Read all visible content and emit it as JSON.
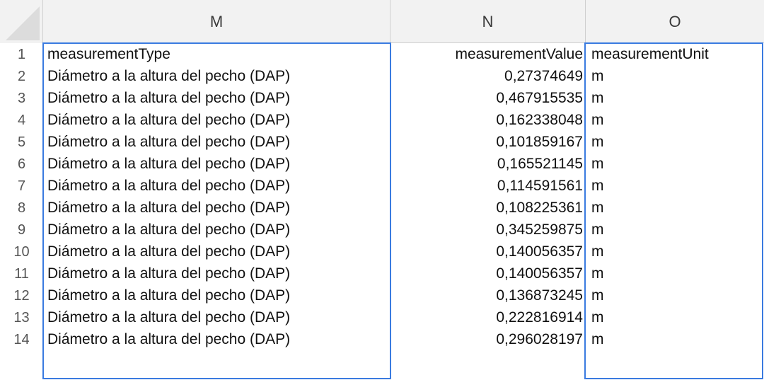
{
  "columns": [
    "M",
    "N",
    "O"
  ],
  "header_row": {
    "number": "1",
    "m": "measurementType",
    "n": "measurementValue",
    "o": "measurementUnit"
  },
  "rows": [
    {
      "number": "2",
      "type": "Diámetro a la altura del pecho (DAP)",
      "value": "0,27374649",
      "unit": "m"
    },
    {
      "number": "3",
      "type": "Diámetro a la altura del pecho (DAP)",
      "value": "0,467915535",
      "unit": "m"
    },
    {
      "number": "4",
      "type": "Diámetro a la altura del pecho (DAP)",
      "value": "0,162338048",
      "unit": "m"
    },
    {
      "number": "5",
      "type": "Diámetro a la altura del pecho (DAP)",
      "value": "0,101859167",
      "unit": "m"
    },
    {
      "number": "6",
      "type": "Diámetro a la altura del pecho (DAP)",
      "value": "0,165521145",
      "unit": "m"
    },
    {
      "number": "7",
      "type": "Diámetro a la altura del pecho (DAP)",
      "value": "0,114591561",
      "unit": "m"
    },
    {
      "number": "8",
      "type": "Diámetro a la altura del pecho (DAP)",
      "value": "0,108225361",
      "unit": "m"
    },
    {
      "number": "9",
      "type": "Diámetro a la altura del pecho (DAP)",
      "value": "0,345259875",
      "unit": "m"
    },
    {
      "number": "10",
      "type": "Diámetro a la altura del pecho (DAP)",
      "value": "0,140056357",
      "unit": "m"
    },
    {
      "number": "11",
      "type": "Diámetro a la altura del pecho (DAP)",
      "value": "0,140056357",
      "unit": "m"
    },
    {
      "number": "12",
      "type": "Diámetro a la altura del pecho (DAP)",
      "value": "0,136873245",
      "unit": "m"
    },
    {
      "number": "13",
      "type": "Diámetro a la altura del pecho (DAP)",
      "value": "0,222816914",
      "unit": "m"
    },
    {
      "number": "14",
      "type": "Diámetro a la altura del pecho (DAP)",
      "value": "0,296028197",
      "unit": "m"
    }
  ],
  "colors": {
    "selection_border": "#3a7be0",
    "header_background": "#f2f2f2"
  }
}
